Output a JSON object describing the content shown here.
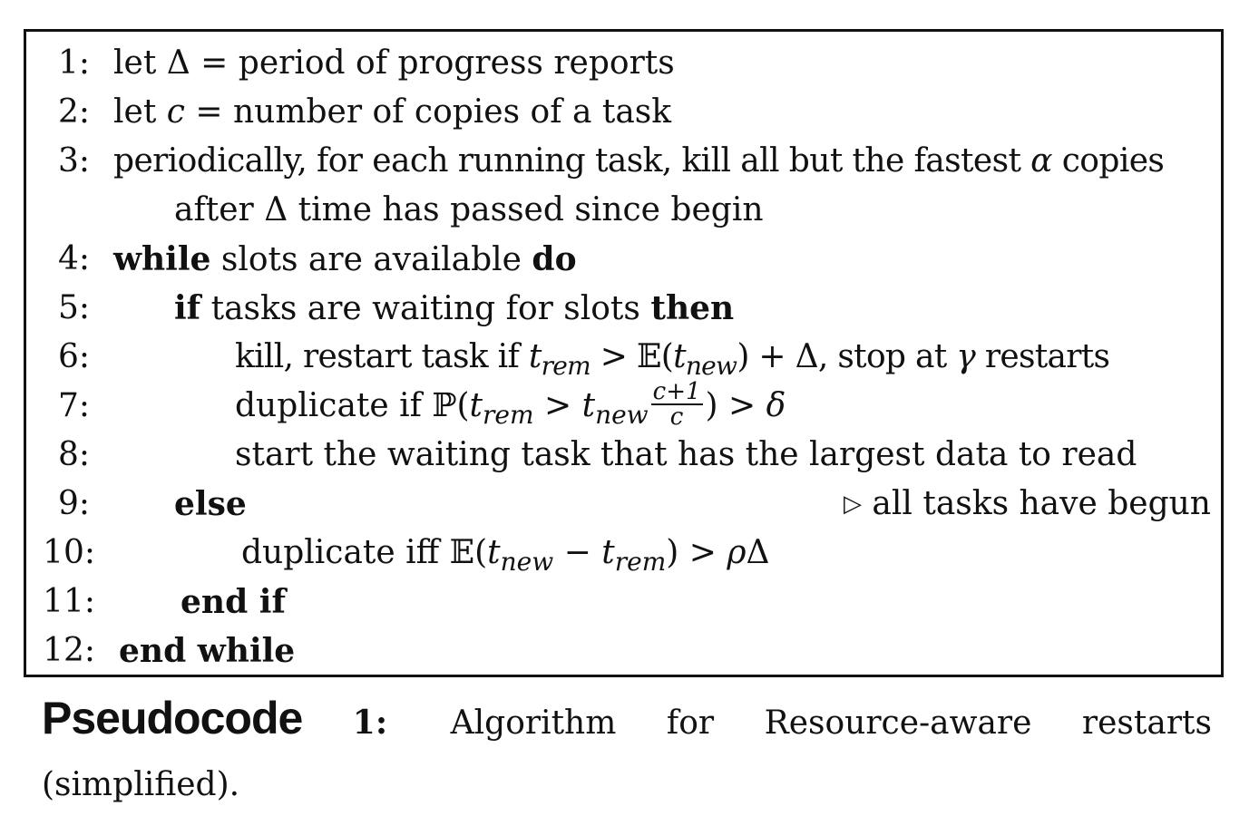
{
  "algorithm": {
    "lines": [
      {
        "num": "1:",
        "parts": [
          "let ",
          "Δ",
          " = period of progress reports"
        ]
      },
      {
        "num": "2:",
        "parts": [
          "let ",
          "c",
          " = number of copies of a task"
        ]
      },
      {
        "num": "3:",
        "parts": [
          "periodically, for each running task, kill all but the fastest ",
          "α",
          " copies"
        ]
      },
      {
        "num": "",
        "parts": [
          "after ",
          "Δ",
          " time has passed since begin"
        ]
      },
      {
        "num": "4:",
        "parts": [
          "while",
          " slots are available ",
          "do"
        ]
      },
      {
        "num": "5:",
        "parts": [
          "if",
          " tasks are waiting for slots ",
          "then"
        ]
      },
      {
        "num": "6:",
        "parts": [
          "kill, restart task if ",
          "t",
          "rem",
          " > 𝔼(",
          "t",
          "new",
          ") + Δ, stop at ",
          "γ",
          " restarts"
        ]
      },
      {
        "num": "7:",
        "parts": [
          "duplicate if ℙ(",
          "t",
          "rem",
          " > ",
          "t",
          "new",
          "c+1",
          "c",
          ") > ",
          "δ"
        ]
      },
      {
        "num": "8:",
        "parts": [
          "start the waiting task that has the largest data to read"
        ]
      },
      {
        "num": "9:",
        "parts": [
          "else"
        ],
        "comment_marker": "▷",
        "comment": "all tasks have begun"
      },
      {
        "num": "10:",
        "parts": [
          "duplicate iff 𝔼(",
          "t",
          "new",
          " − ",
          "t",
          "rem",
          ") > ",
          "ρ",
          "Δ"
        ]
      },
      {
        "num": "11:",
        "parts": [
          "end if"
        ]
      },
      {
        "num": "12:",
        "parts": [
          "end while"
        ]
      }
    ]
  },
  "caption": {
    "label": "Pseudocode",
    "number": "1:",
    "text": "Algorithm for Resource-aware restarts (simplified)."
  }
}
